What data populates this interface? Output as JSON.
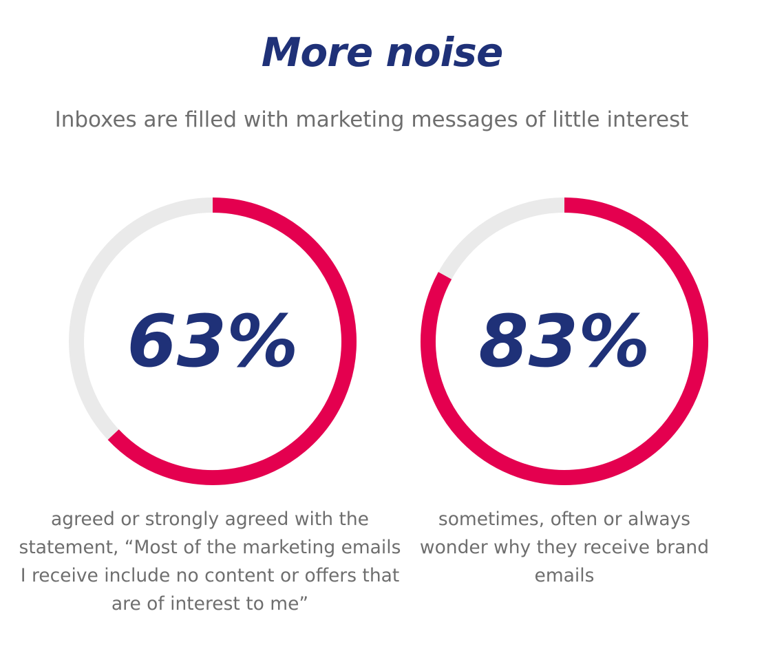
{
  "header": {
    "title": "More noise",
    "subtitle": "Inboxes are filled with marketing messages of little interest"
  },
  "colors": {
    "title": "#1f3178",
    "subtitle": "#6e6e6e",
    "value": "#1f3178",
    "arc": "#e4004f",
    "track": "#eaeaea",
    "caption": "#6e6e6e"
  },
  "chart_data": [
    {
      "type": "pie",
      "value_label": "63%",
      "value": 63,
      "max": 100,
      "caption": "agreed or strongly agreed with the statement, “Most of the marketing emails I receive include no content or offers that are of interest to me”"
    },
    {
      "type": "pie",
      "value_label": "83%",
      "value": 83,
      "max": 100,
      "caption": "sometimes, often or always wonder why they receive brand emails"
    }
  ]
}
